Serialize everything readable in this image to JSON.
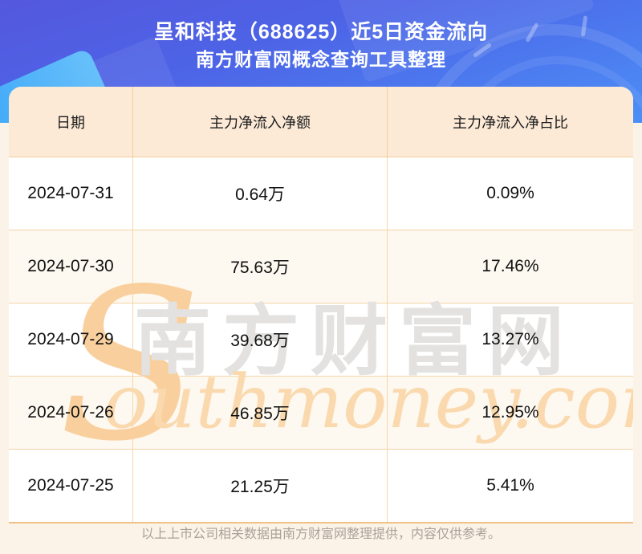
{
  "header": {
    "title_line1": "呈和科技（688625）近5日资金流向",
    "title_line2": "南方财富网概念查询工具整理"
  },
  "table": {
    "columns": [
      "日期",
      "主力净流入净额",
      "主力净流入净占比"
    ],
    "rows": [
      [
        "2024-07-31",
        "0.64万",
        "0.09%"
      ],
      [
        "2024-07-30",
        "75.63万",
        "17.46%"
      ],
      [
        "2024-07-29",
        "39.68万",
        "13.27%"
      ],
      [
        "2024-07-26",
        "46.85万",
        "12.95%"
      ],
      [
        "2024-07-25",
        "21.25万",
        "5.41%"
      ]
    ]
  },
  "watermark": {
    "initial": "S",
    "cn_text": "南方财富网",
    "en_text": "outhmoney.com"
  },
  "footer": {
    "note": "以上上市公司相关数据由南方财富网整理提供，内容仅供参考。"
  },
  "colors": {
    "hero_blue_start": "#5458de",
    "hero_blue_end": "#4b8ff5",
    "hero_accent_wedge": "#35a2f8",
    "table_header_bg": "#fcead7",
    "row_alt_bg": "#fdf8f0",
    "row_bg": "#ffffff",
    "grid_border": "#f2cd9b",
    "bottom_border": "#f0c187",
    "page_bg": "#fcf3e8",
    "title_text": "#ffffff",
    "cell_text": "#111111",
    "footer_text": "#a8a29a",
    "watermark_orange": "#f9d09d",
    "watermark_gray": "#e3e2e0"
  },
  "chart_data": {
    "type": "table",
    "title": "呈和科技（688625）近5日资金流向",
    "subtitle": "南方财富网概念查询工具整理",
    "columns": [
      "日期",
      "主力净流入净额",
      "主力净流入净占比"
    ],
    "dates": [
      "2024-07-31",
      "2024-07-30",
      "2024-07-29",
      "2024-07-26",
      "2024-07-25"
    ],
    "series": [
      {
        "name": "主力净流入净额(万)",
        "values": [
          0.64,
          75.63,
          39.68,
          46.85,
          21.25
        ]
      },
      {
        "name": "主力净流入净占比(%)",
        "values": [
          0.09,
          17.46,
          13.27,
          12.95,
          5.41
        ]
      }
    ]
  }
}
